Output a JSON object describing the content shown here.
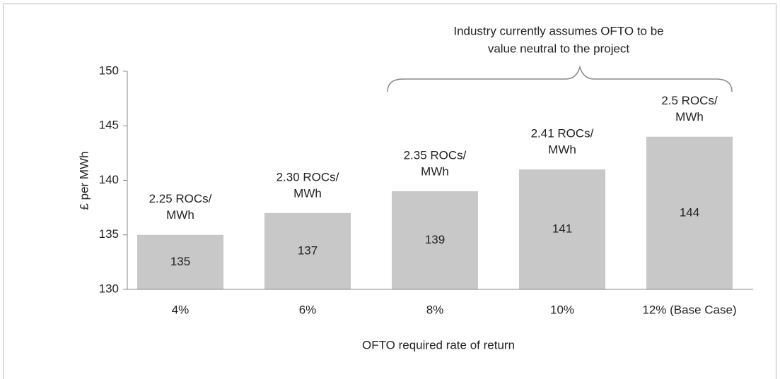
{
  "chart_data": {
    "type": "bar",
    "categories": [
      "4%",
      "6%",
      "8%",
      "10%",
      "12% (Base Case)"
    ],
    "values": [
      135,
      137,
      139,
      141,
      144
    ],
    "bar_notes": [
      [
        "2.25 ROCs/",
        "MWh"
      ],
      [
        "2.30 ROCs/",
        "MWh"
      ],
      [
        "2.35 ROCs/",
        "MWh"
      ],
      [
        "2.41 ROCs/",
        "MWh"
      ],
      [
        "2.5 ROCs/",
        "MWh"
      ]
    ],
    "color": "#c8c8c8",
    "ylim": [
      130,
      150
    ],
    "yticks": [
      130,
      135,
      140,
      145,
      150
    ],
    "ylabel": "£ per MWh",
    "xlabel": "OFTO required rate of return",
    "annotation": [
      "Industry currently assumes OFTO to be",
      "value neutral to the project"
    ],
    "grid": false
  }
}
